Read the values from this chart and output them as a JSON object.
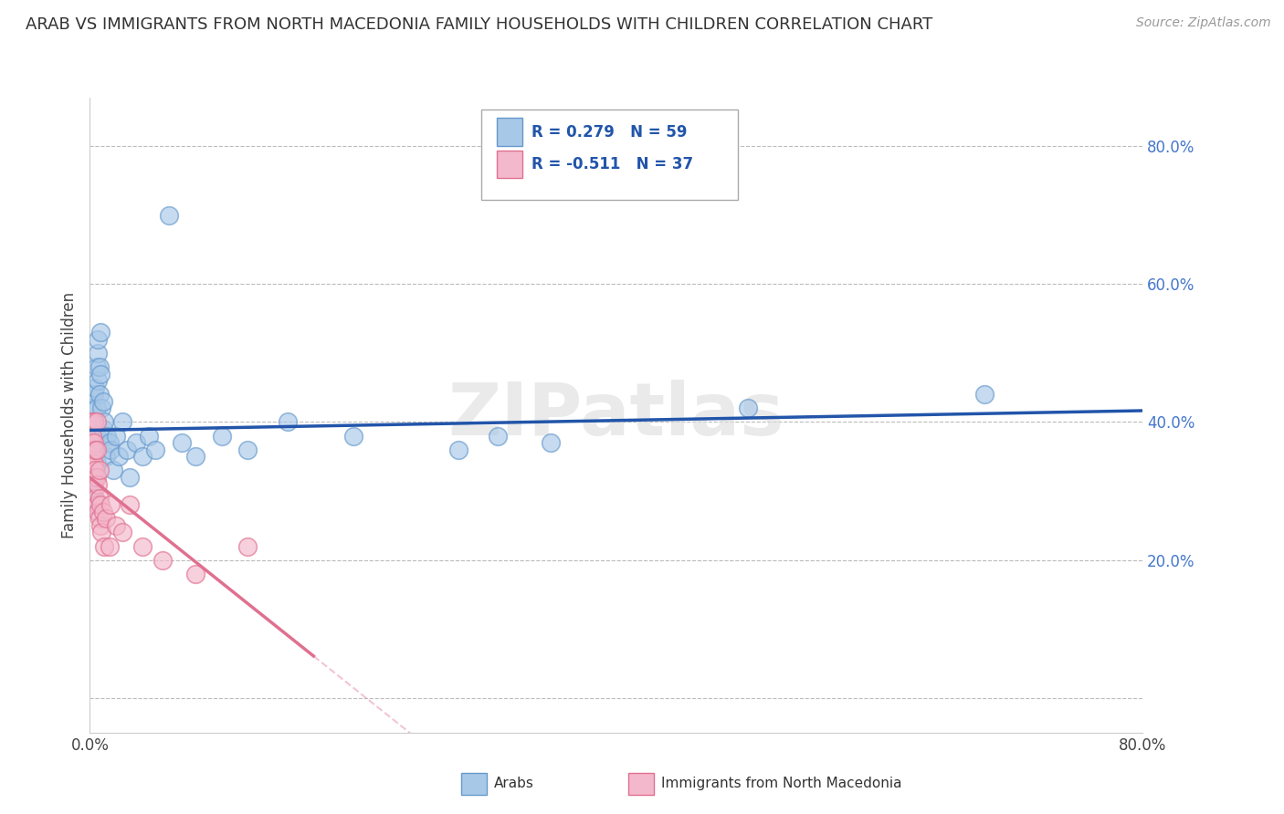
{
  "title": "ARAB VS IMMIGRANTS FROM NORTH MACEDONIA FAMILY HOUSEHOLDS WITH CHILDREN CORRELATION CHART",
  "source": "Source: ZipAtlas.com",
  "ylabel": "Family Households with Children",
  "xlim": [
    0.0,
    0.8
  ],
  "ylim": [
    -0.05,
    0.87
  ],
  "ytick_vals": [
    0.0,
    0.2,
    0.4,
    0.6,
    0.8
  ],
  "ytick_labels": [
    "",
    "20.0%",
    "40.0%",
    "60.0%",
    "80.0%"
  ],
  "xtick_vals": [
    0.0,
    0.8
  ],
  "xtick_labels": [
    "0.0%",
    "80.0%"
  ],
  "arab_color": "#a8c8e8",
  "arab_edge_color": "#6699cc",
  "nmac_color": "#f4b8cc",
  "nmac_edge_color": "#e07090",
  "arab_R": 0.279,
  "arab_N": 59,
  "nmac_R": -0.511,
  "nmac_N": 37,
  "legend_label_arab": "Arabs",
  "legend_label_nmac": "Immigrants from North Macedonia",
  "arab_line_color": "#2255aa",
  "nmac_line_color": "#e07090",
  "watermark": "ZIPatlas",
  "background_color": "#ffffff",
  "grid_color": "#bbbbbb",
  "arab_x": [
    0.001,
    0.001,
    0.001,
    0.001,
    0.002,
    0.002,
    0.002,
    0.002,
    0.002,
    0.003,
    0.003,
    0.003,
    0.003,
    0.003,
    0.004,
    0.004,
    0.004,
    0.004,
    0.005,
    0.005,
    0.005,
    0.005,
    0.006,
    0.006,
    0.006,
    0.007,
    0.007,
    0.008,
    0.008,
    0.009,
    0.01,
    0.01,
    0.011,
    0.012,
    0.013,
    0.015,
    0.016,
    0.018,
    0.02,
    0.022,
    0.025,
    0.028,
    0.03,
    0.035,
    0.04,
    0.045,
    0.05,
    0.06,
    0.07,
    0.08,
    0.1,
    0.12,
    0.15,
    0.2,
    0.28,
    0.31,
    0.35,
    0.5,
    0.68
  ],
  "arab_y": [
    0.32,
    0.34,
    0.28,
    0.3,
    0.35,
    0.38,
    0.31,
    0.36,
    0.42,
    0.33,
    0.29,
    0.36,
    0.4,
    0.44,
    0.38,
    0.45,
    0.32,
    0.36,
    0.48,
    0.42,
    0.38,
    0.34,
    0.5,
    0.46,
    0.52,
    0.48,
    0.44,
    0.53,
    0.47,
    0.42,
    0.43,
    0.39,
    0.4,
    0.35,
    0.38,
    0.37,
    0.36,
    0.33,
    0.38,
    0.35,
    0.4,
    0.36,
    0.32,
    0.37,
    0.35,
    0.38,
    0.36,
    0.7,
    0.37,
    0.35,
    0.38,
    0.36,
    0.4,
    0.38,
    0.36,
    0.38,
    0.37,
    0.42,
    0.44
  ],
  "nmac_x": [
    0.001,
    0.001,
    0.001,
    0.002,
    0.002,
    0.002,
    0.003,
    0.003,
    0.003,
    0.003,
    0.004,
    0.004,
    0.004,
    0.005,
    0.005,
    0.005,
    0.005,
    0.006,
    0.006,
    0.007,
    0.007,
    0.007,
    0.008,
    0.008,
    0.009,
    0.01,
    0.011,
    0.012,
    0.015,
    0.016,
    0.02,
    0.025,
    0.03,
    0.04,
    0.055,
    0.08,
    0.12
  ],
  "nmac_y": [
    0.34,
    0.37,
    0.4,
    0.32,
    0.35,
    0.38,
    0.31,
    0.34,
    0.37,
    0.4,
    0.29,
    0.33,
    0.36,
    0.28,
    0.32,
    0.36,
    0.4,
    0.27,
    0.31,
    0.26,
    0.29,
    0.33,
    0.25,
    0.28,
    0.24,
    0.27,
    0.22,
    0.26,
    0.22,
    0.28,
    0.25,
    0.24,
    0.28,
    0.22,
    0.2,
    0.18,
    0.22
  ]
}
